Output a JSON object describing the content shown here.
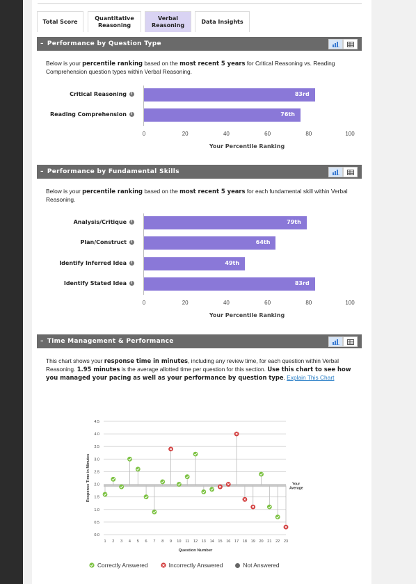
{
  "tabs": [
    {
      "label": "Total Score",
      "active": false
    },
    {
      "label": "Quantitative Reasoning",
      "active": false
    },
    {
      "label": "Verbal Reasoning",
      "active": true
    },
    {
      "label": "Data Insights",
      "active": false
    }
  ],
  "section1": {
    "title": "Performance by Question Type",
    "desc_pre": "Below is your ",
    "desc_b1": "percentile ranking",
    "desc_mid": " based on the ",
    "desc_b2": "most recent 5 years",
    "desc_post": " for Critical Reasoning vs. Reading Comprehension question types within Verbal Reasoning.",
    "chart_data": {
      "type": "bar",
      "orientation": "horizontal",
      "categories": [
        "Critical Reasoning",
        "Reading Comprehension"
      ],
      "values": [
        83,
        76
      ],
      "value_labels": [
        "83rd",
        "76th"
      ],
      "xlabel": "Your Percentile Ranking",
      "xlim": [
        0,
        100
      ],
      "xticks": [
        "0",
        "20",
        "40",
        "60",
        "80",
        "100"
      ]
    }
  },
  "section2": {
    "title": "Performance by Fundamental Skills",
    "desc_pre": "Below is your ",
    "desc_b1": "percentile ranking",
    "desc_mid": " based on the ",
    "desc_b2": "most recent 5 years",
    "desc_post": " for each fundamental skill within Verbal Reasoning.",
    "chart_data": {
      "type": "bar",
      "orientation": "horizontal",
      "categories": [
        "Analysis/Critique",
        "Plan/Construct",
        "Identify Inferred Idea",
        "Identify Stated Idea"
      ],
      "values": [
        79,
        64,
        49,
        83
      ],
      "value_labels": [
        "79th",
        "64th",
        "49th",
        "83rd"
      ],
      "xlabel": "Your Percentile Ranking",
      "xlim": [
        0,
        100
      ],
      "xticks": [
        "0",
        "20",
        "40",
        "60",
        "80",
        "100"
      ]
    }
  },
  "section3": {
    "title": "Time Management & Performance",
    "desc_pre": "This chart shows your ",
    "desc_b1": "response time in minutes",
    "desc_mid1": ", including any review time, for each question within Verbal Reasoning. ",
    "desc_b2": "1.95 minutes",
    "desc_mid2": " is the average allotted time per question for this section. ",
    "desc_b3": "Use this chart to see how you managed your pacing as well as your performance by question type",
    "desc_end": ". ",
    "link": "Explain This Chart",
    "chart_data": {
      "type": "scatter",
      "xlabel": "Question Number",
      "ylabel": "Response Time in Minutes",
      "x": [
        1,
        2,
        3,
        4,
        5,
        6,
        7,
        8,
        9,
        10,
        11,
        12,
        13,
        14,
        15,
        16,
        17,
        18,
        19,
        20,
        21,
        22,
        23
      ],
      "y": [
        1.6,
        2.2,
        1.9,
        3.0,
        2.6,
        1.5,
        0.9,
        2.1,
        3.4,
        2.0,
        2.3,
        3.2,
        1.7,
        1.8,
        1.9,
        2.0,
        4.0,
        1.4,
        1.1,
        2.4,
        1.1,
        0.7,
        0.3
      ],
      "result": [
        "correct",
        "correct",
        "correct",
        "correct",
        "correct",
        "correct",
        "correct",
        "correct",
        "incorrect",
        "correct",
        "correct",
        "correct",
        "correct",
        "correct",
        "incorrect",
        "incorrect",
        "incorrect",
        "incorrect",
        "incorrect",
        "correct",
        "correct",
        "correct",
        "incorrect"
      ],
      "average": 1.95,
      "average_label": "Your Average",
      "ylim": [
        0,
        4.5
      ],
      "yticks": [
        "0.0",
        "0.5",
        "1.0",
        "1.5",
        "2.0",
        "2.5",
        "3.0",
        "3.5",
        "4.0",
        "4.5"
      ],
      "legend": [
        "Correctly Answered",
        "Incorrectly Answered",
        "Not Answered"
      ],
      "colors": {
        "correct": "#7cc242",
        "incorrect": "#d23b3b",
        "not_answered": "#666666"
      }
    }
  }
}
